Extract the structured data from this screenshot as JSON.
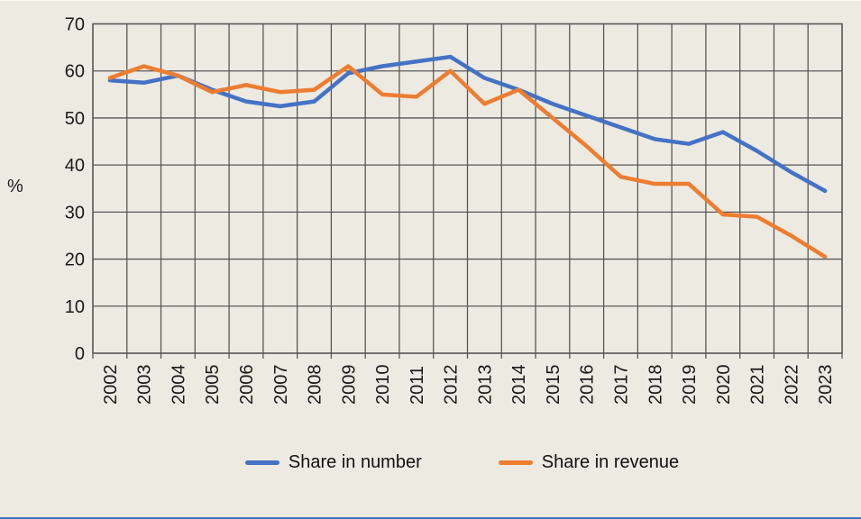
{
  "colors": {
    "background": "#EDEAE2",
    "gridline": "#5A5856",
    "axis_text": "#1A1A1A",
    "bottom_border": "#4472C4"
  },
  "chart_data": {
    "type": "line",
    "title": "",
    "x": [
      "2002",
      "2003",
      "2004",
      "2005",
      "2006",
      "2007",
      "2008",
      "2009",
      "2010",
      "2011",
      "2012",
      "2013",
      "2014",
      "2015",
      "2016",
      "2017",
      "2018",
      "2019",
      "2020",
      "2021",
      "2022",
      "2023"
    ],
    "series": [
      {
        "name": "Share in number",
        "color": "#4472C4",
        "values": [
          58,
          57.5,
          59,
          56,
          53.5,
          52.5,
          53.5,
          59.5,
          61,
          62,
          63,
          58.5,
          56,
          53,
          50.5,
          48,
          45.5,
          44.5,
          47,
          43,
          38.5,
          34.5
        ]
      },
      {
        "name": "Share in revenue",
        "color": "#ED7D31",
        "values": [
          58.5,
          61,
          59,
          55.5,
          57,
          55.5,
          56,
          61,
          55,
          54.5,
          60,
          53,
          56,
          50,
          44,
          37.5,
          36,
          36,
          29.5,
          29,
          25,
          20.5
        ]
      }
    ],
    "ylabel": "%",
    "ylim": [
      0,
      70
    ],
    "ytick_step": 10,
    "grid": true,
    "legend_position": "bottom"
  }
}
